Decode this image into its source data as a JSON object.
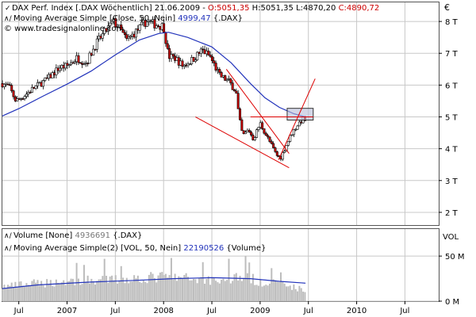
{
  "legend": {
    "price_name": "DAX Perf. Index [.DAX  Wöchentlich] 21.06.2009 - ",
    "price_o": "O:5051,35",
    "price_h": "H:5051,35",
    "price_l": "L:4870,20",
    "price_c": "C:4890,72",
    "ma_label": "Moving Average Simple [Close, 50, Nein]",
    "ma_value": "4999,47",
    "ma_symbol": "{.DAX}",
    "copyright": "© www.tradesignalonline.com",
    "volume_label": "Volume [None]",
    "volume_value": "4936691",
    "volume_symbol": "{.DAX}",
    "vol_ma_label": "Moving Average Simple(2) [VOL, 50, Nein]",
    "vol_ma_value": "22190526",
    "vol_ma_symbol": "{Volume}",
    "currency": "€",
    "vol_axis_title": "VOL"
  },
  "colors": {
    "price_up": "#000000",
    "price_down": "#cc0000",
    "ma_line": "#2233bb",
    "trendline": "#dd0000",
    "volume_bar": "#bdbdbd",
    "grid": "#c8c8c8",
    "highlight_box": "#b8bcd8"
  },
  "chart_data": {
    "type": "candlestick",
    "price_axis": {
      "ylim": [
        1600,
        8600
      ],
      "ticks": [
        {
          "value": 2000,
          "label": "2 T"
        },
        {
          "value": 3000,
          "label": "3 T"
        },
        {
          "value": 4000,
          "label": "4 T"
        },
        {
          "value": 5000,
          "label": "5 T"
        },
        {
          "value": 6000,
          "label": "6 T"
        },
        {
          "value": 7000,
          "label": "7 T"
        },
        {
          "value": 8000,
          "label": "8 T"
        }
      ]
    },
    "volume_axis": {
      "ylim": [
        0,
        80
      ],
      "unit": "M",
      "ticks": [
        {
          "value": 0,
          "label": "0 M"
        },
        {
          "value": 50,
          "label": "50 M"
        }
      ]
    },
    "x_axis": {
      "xlim": [
        2006.33,
        2010.85
      ],
      "ticks": [
        {
          "value": 2006.5,
          "label": "Jul",
          "major": false
        },
        {
          "value": 2007.0,
          "label": "2007",
          "major": true
        },
        {
          "value": 2007.5,
          "label": "Jul",
          "major": false
        },
        {
          "value": 2008.0,
          "label": "2008",
          "major": true
        },
        {
          "value": 2008.5,
          "label": "Jul",
          "major": false
        },
        {
          "value": 2009.0,
          "label": "2009",
          "major": true
        },
        {
          "value": 2009.5,
          "label": "Jul",
          "major": false
        },
        {
          "value": 2010.0,
          "label": "2010",
          "major": true
        },
        {
          "value": 2010.5,
          "label": "Jul",
          "major": false
        }
      ]
    },
    "close_anchors": [
      [
        2006.33,
        6050
      ],
      [
        2006.4,
        5950
      ],
      [
        2006.47,
        5500
      ],
      [
        2006.55,
        5650
      ],
      [
        2006.65,
        5900
      ],
      [
        2006.8,
        6200
      ],
      [
        2006.92,
        6550
      ],
      [
        2007.0,
        6600
      ],
      [
        2007.1,
        6850
      ],
      [
        2007.2,
        6700
      ],
      [
        2007.3,
        7300
      ],
      [
        2007.4,
        7700
      ],
      [
        2007.48,
        8000
      ],
      [
        2007.55,
        7750
      ],
      [
        2007.62,
        7400
      ],
      [
        2007.72,
        7700
      ],
      [
        2007.82,
        8000
      ],
      [
        2007.92,
        7900
      ],
      [
        2008.0,
        7850
      ],
      [
        2008.05,
        6900
      ],
      [
        2008.12,
        6850
      ],
      [
        2008.2,
        6600
      ],
      [
        2008.3,
        6800
      ],
      [
        2008.4,
        7100
      ],
      [
        2008.48,
        6900
      ],
      [
        2008.58,
        6300
      ],
      [
        2008.68,
        6100
      ],
      [
        2008.75,
        5800
      ],
      [
        2008.78,
        5000
      ],
      [
        2008.82,
        4400
      ],
      [
        2008.88,
        4600
      ],
      [
        2008.93,
        4300
      ],
      [
        2009.0,
        4800
      ],
      [
        2009.05,
        4500
      ],
      [
        2009.12,
        4100
      ],
      [
        2009.17,
        3800
      ],
      [
        2009.21,
        3700
      ],
      [
        2009.27,
        4100
      ],
      [
        2009.33,
        4500
      ],
      [
        2009.4,
        4800
      ],
      [
        2009.45,
        4950
      ],
      [
        2009.47,
        4890
      ]
    ],
    "moving_average": [
      [
        2006.33,
        5030
      ],
      [
        2006.5,
        5260
      ],
      [
        2006.75,
        5650
      ],
      [
        2007.0,
        6030
      ],
      [
        2007.25,
        6440
      ],
      [
        2007.5,
        6950
      ],
      [
        2007.75,
        7420
      ],
      [
        2007.95,
        7620
      ],
      [
        2008.05,
        7660
      ],
      [
        2008.25,
        7500
      ],
      [
        2008.5,
        7200
      ],
      [
        2008.7,
        6700
      ],
      [
        2008.9,
        6050
      ],
      [
        2009.05,
        5600
      ],
      [
        2009.2,
        5300
      ],
      [
        2009.35,
        5100
      ],
      [
        2009.47,
        5000
      ]
    ],
    "volume_base_m": [
      [
        2006.33,
        16
      ],
      [
        2006.6,
        19
      ],
      [
        2007.0,
        22
      ],
      [
        2007.5,
        24
      ],
      [
        2008.0,
        27
      ],
      [
        2008.3,
        25
      ],
      [
        2008.6,
        23
      ],
      [
        2008.8,
        28
      ],
      [
        2009.0,
        22
      ],
      [
        2009.3,
        17
      ],
      [
        2009.47,
        12
      ]
    ],
    "volume_average": [
      [
        2006.33,
        14
      ],
      [
        2006.7,
        18
      ],
      [
        2007.2,
        21
      ],
      [
        2007.7,
        23
      ],
      [
        2008.1,
        25
      ],
      [
        2008.5,
        26
      ],
      [
        2008.9,
        25
      ],
      [
        2009.2,
        22
      ],
      [
        2009.47,
        20
      ]
    ],
    "trendlines": [
      {
        "name": "resistance",
        "points": [
          [
            2008.65,
            6500
          ],
          [
            2009.3,
            3850
          ]
        ]
      },
      {
        "name": "support",
        "points": [
          [
            2008.33,
            5000
          ],
          [
            2009.3,
            3400
          ]
        ]
      },
      {
        "name": "horizontal",
        "points": [
          [
            2008.9,
            5000
          ],
          [
            2009.55,
            5000
          ]
        ]
      },
      {
        "name": "breakout",
        "points": [
          [
            2009.19,
            3650
          ],
          [
            2009.57,
            6200
          ]
        ]
      }
    ],
    "highlight_zone": {
      "x": [
        2009.28,
        2009.55
      ],
      "y": [
        4900,
        5270
      ]
    }
  }
}
